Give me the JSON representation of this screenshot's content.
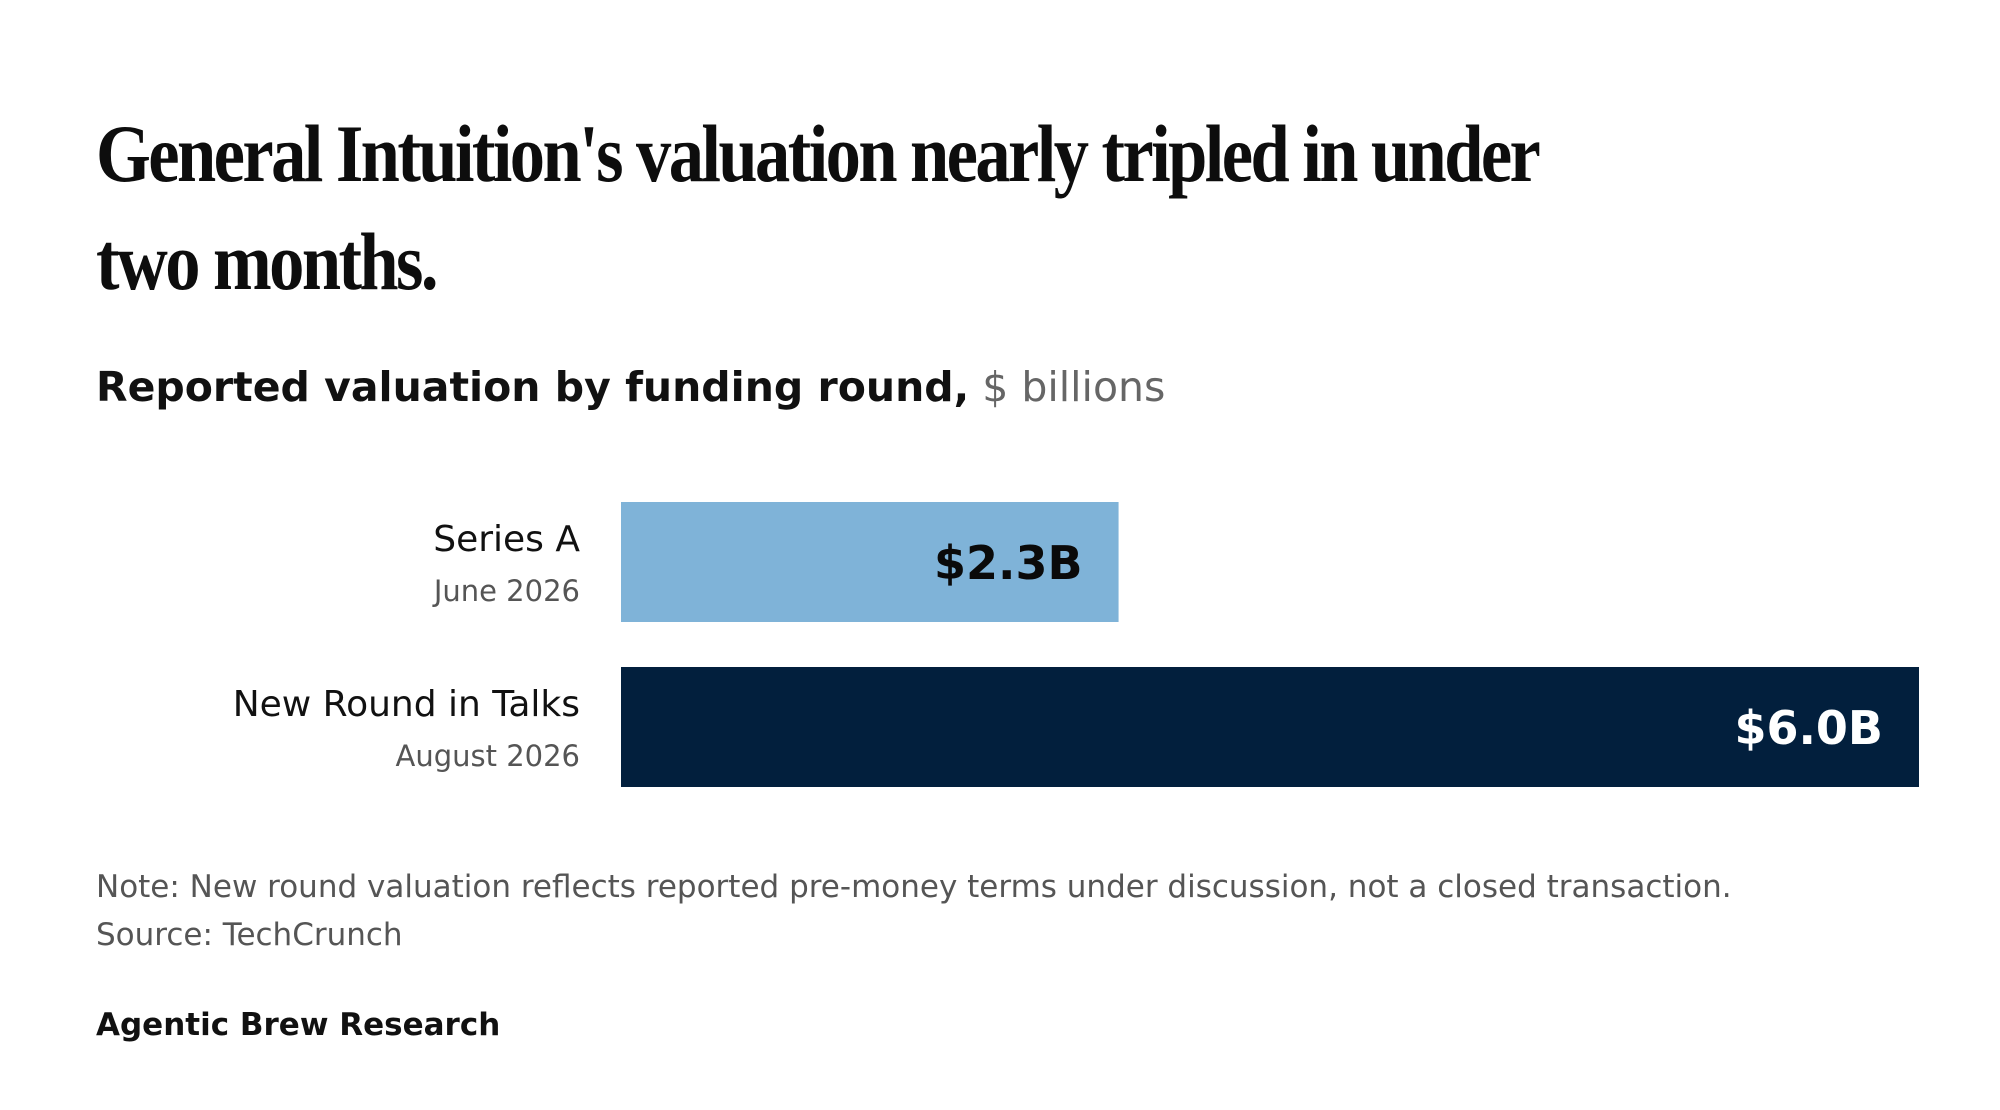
{
  "title": "General Intuition's valuation nearly tripled in under two months.",
  "subtitle": {
    "main": "Reported valuation by funding round,",
    "unit": " $ billions"
  },
  "chart_data": {
    "type": "bar",
    "orientation": "horizontal",
    "categories": [
      "Series A",
      "New Round in Talks"
    ],
    "category_dates": [
      "June 2026",
      "August 2026"
    ],
    "values": [
      2.3,
      6.0
    ],
    "value_labels": [
      "$2.3B",
      "$6.0B"
    ],
    "colors": [
      "#7fb3d8",
      "#021f3d"
    ],
    "value_label_colors": [
      "#0a0a0a",
      "#ffffff"
    ],
    "title": "Reported valuation by funding round,",
    "unit": "$ billions",
    "xlim": [
      0,
      6.0
    ],
    "grid": false,
    "legend": "none"
  },
  "footer": {
    "note": "Note: New round valuation reflects reported pre-money terms under discussion, not a closed transaction.",
    "source": "Source: TechCrunch",
    "brand": "Agentic Brew Research"
  }
}
